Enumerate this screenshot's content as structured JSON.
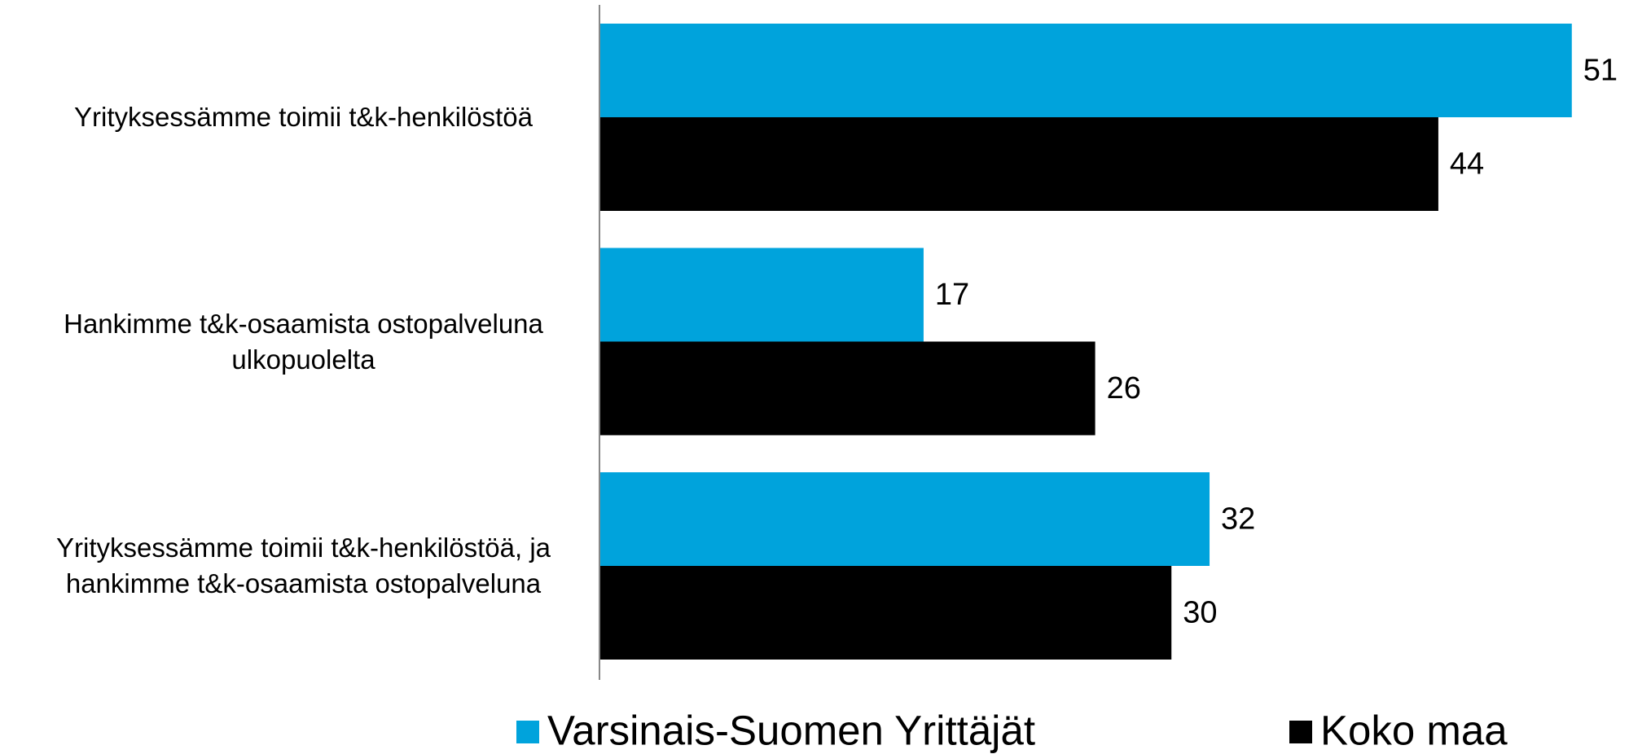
{
  "chart_data": {
    "type": "barh",
    "categories": [
      "Yrityksessämme toimii t&k-henkilöstöä",
      "Hankimme t&k-osaamista ostopalveluna ulkopuolelta",
      "Yrityksessämme toimii t&k-henkilöstöä, ja hankimme t&k-osaamista ostopalveluna"
    ],
    "series": [
      {
        "name": "Varsinais-Suomen Yrittäjät",
        "color": "#00a3dc",
        "values": [
          51,
          17,
          32
        ]
      },
      {
        "name": "Koko maa",
        "color": "#000000",
        "values": [
          44,
          26,
          30
        ]
      }
    ],
    "xlim": [
      0,
      54
    ],
    "legend": "bottom"
  }
}
